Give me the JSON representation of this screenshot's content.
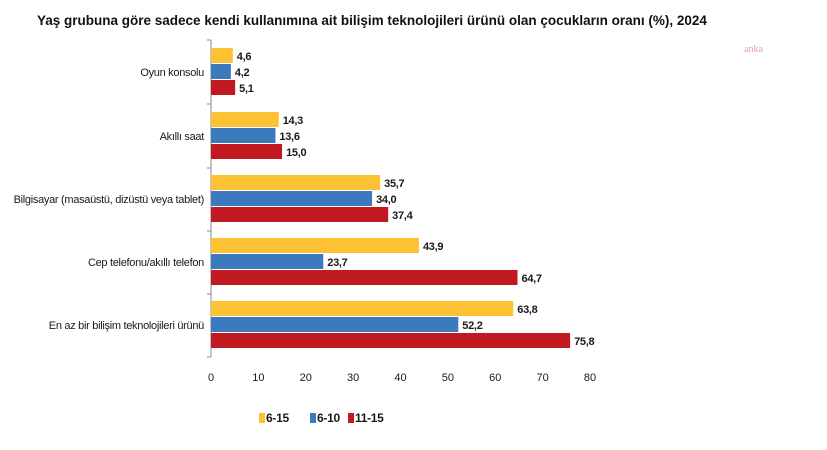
{
  "title": "Yaş grubuna göre sadece kendi kullanımına ait bilişim teknolojileri ürünü olan çocukların oranı (%), 2024",
  "watermark": "anka",
  "colors": {
    "series_6_15": "#FCC233",
    "series_6_10": "#3A7ABD",
    "series_11_15": "#C0191F",
    "axis": "#8c8c8c"
  },
  "chart_data": {
    "type": "bar",
    "orientation": "horizontal",
    "categories": [
      "Oyun konsolu",
      "Akıllı saat",
      "Bilgisayar (masaüstü, dizüstü veya tablet)",
      "Cep telefonu/akıllı telefon",
      "En az bir bilişim teknolojileri ürünü"
    ],
    "series": [
      {
        "name": "6-15",
        "values": [
          4.6,
          14.3,
          35.7,
          43.9,
          63.8
        ],
        "labels": [
          "4,6",
          "14,3",
          "35,7",
          "43,9",
          "63,8"
        ]
      },
      {
        "name": "6-10",
        "values": [
          4.2,
          13.6,
          34.0,
          23.7,
          52.2
        ],
        "labels": [
          "4,2",
          "13,6",
          "34,0",
          "23,7",
          "52,2"
        ]
      },
      {
        "name": "11-15",
        "values": [
          5.1,
          15.0,
          37.4,
          64.7,
          75.8
        ],
        "labels": [
          "5,1",
          "15,0",
          "37,4",
          "64,7",
          "75,8"
        ]
      }
    ],
    "xlim": [
      0,
      80
    ],
    "xticks": [
      0,
      10,
      20,
      30,
      40,
      50,
      60,
      70,
      80
    ],
    "grid": false,
    "legend_position": "bottom"
  }
}
